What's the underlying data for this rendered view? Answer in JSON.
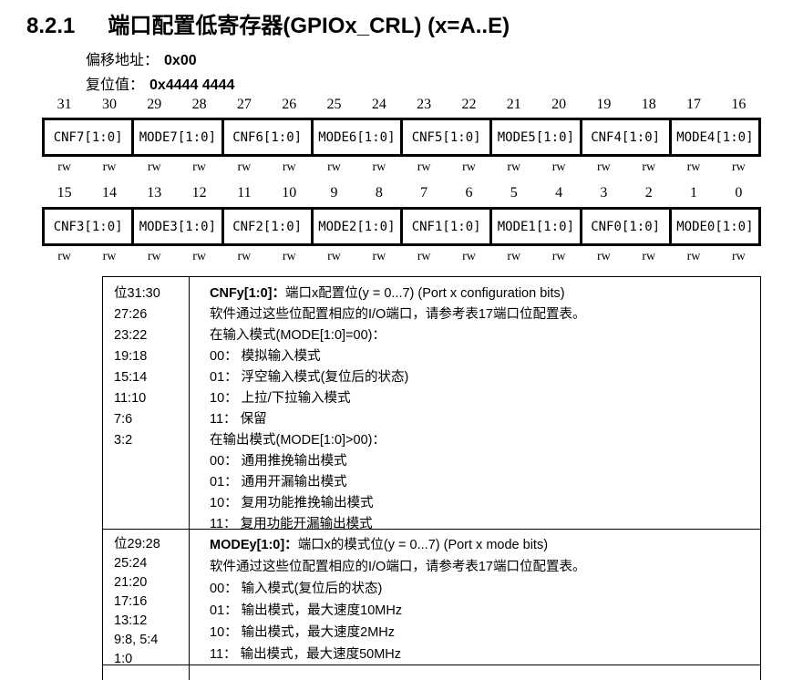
{
  "section": {
    "number": "8.2.1",
    "title": "端口配置低寄存器(GPIOx_CRL) (x=A..E)"
  },
  "meta": {
    "offset_label": "偏移地址：",
    "offset_value": "0x00",
    "reset_label": "复位值：",
    "reset_value": "0x4444 4444"
  },
  "register": {
    "access": "rw",
    "rows": [
      {
        "bits": [
          "31",
          "30",
          "29",
          "28",
          "27",
          "26",
          "25",
          "24",
          "23",
          "22",
          "21",
          "20",
          "19",
          "18",
          "17",
          "16"
        ],
        "fields": [
          "CNF7[1:0]",
          "MODE7[1:0]",
          "CNF6[1:0]",
          "MODE6[1:0]",
          "CNF5[1:0]",
          "MODE5[1:0]",
          "CNF4[1:0]",
          "MODE4[1:0]"
        ]
      },
      {
        "bits": [
          "15",
          "14",
          "13",
          "12",
          "11",
          "10",
          "9",
          "8",
          "7",
          "6",
          "5",
          "4",
          "3",
          "2",
          "1",
          "0"
        ],
        "fields": [
          "CNF3[1:0]",
          "MODE3[1:0]",
          "CNF2[1:0]",
          "MODE2[1:0]",
          "CNF1[1:0]",
          "MODE1[1:0]",
          "CNF0[1:0]",
          "MODE0[1:0]"
        ]
      }
    ]
  },
  "descriptions": [
    {
      "bit_ranges": [
        "位31:30",
        "27:26",
        "23:22",
        "19:18",
        "15:14",
        "11:10",
        "7:6",
        "3:2"
      ],
      "field_name": "CNFy[1:0]：",
      "field_title": "端口x配置位(y = 0...7) (Port x configuration bits)",
      "lines": [
        "软件通过这些位配置相应的I/O端口，请参考表17端口位配置表。",
        "在输入模式(MODE[1:0]=00)：",
        "00： 模拟输入模式",
        "01： 浮空输入模式(复位后的状态)",
        "10： 上拉/下拉输入模式",
        "11： 保留",
        "在输出模式(MODE[1:0]>00)：",
        "00： 通用推挽输出模式",
        "01： 通用开漏输出模式",
        "10： 复用功能推挽输出模式",
        "11： 复用功能开漏输出模式"
      ]
    },
    {
      "bit_ranges": [
        "位29:28",
        "25:24",
        "21:20",
        "17:16",
        "13:12",
        "9:8, 5:4",
        "1:0"
      ],
      "field_name": "MODEy[1:0]：",
      "field_title": "端口x的模式位(y = 0...7) (Port x mode bits)",
      "lines": [
        "软件通过这些位配置相应的I/O端口，请参考表17端口位配置表。",
        "00： 输入模式(复位后的状态)",
        "01： 输出模式，最大速度10MHz",
        "10： 输出模式，最大速度2MHz",
        "11： 输出模式，最大速度50MHz"
      ]
    }
  ]
}
